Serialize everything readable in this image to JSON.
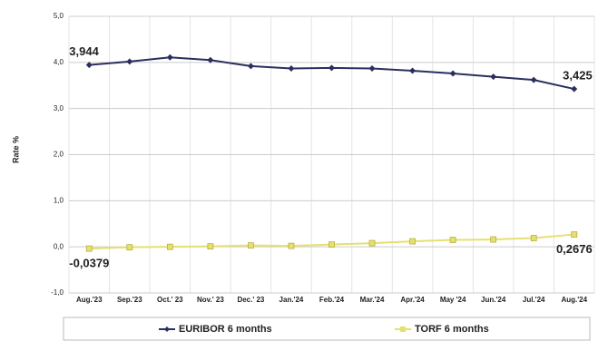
{
  "chart_data": {
    "type": "line",
    "y_label": "Rate %",
    "categories": [
      "Aug.'23",
      "Sep.'23",
      "Oct.' 23",
      "Nov.' 23",
      "Dec.' 23",
      "Jan.'24",
      "Feb.'24",
      "Mar.'24",
      "Apr.'24",
      "May '24",
      "Jun.'24",
      "Jul.'24",
      "Aug.'24"
    ],
    "series": [
      {
        "name": "EURIBOR 6 months",
        "color": "#2b2f5e",
        "marker": "diamond",
        "values": [
          3.944,
          4.02,
          4.11,
          4.05,
          3.92,
          3.87,
          3.88,
          3.87,
          3.82,
          3.76,
          3.69,
          3.62,
          3.425
        ],
        "value_labels": [
          "3,944",
          null,
          null,
          null,
          null,
          null,
          null,
          null,
          null,
          null,
          null,
          null,
          "3,425"
        ]
      },
      {
        "name": "TORF 6 months",
        "color": "#e6e070",
        "marker": "square",
        "values": [
          -0.0379,
          -0.01,
          0.0,
          0.01,
          0.03,
          0.02,
          0.05,
          0.08,
          0.12,
          0.15,
          0.16,
          0.19,
          0.2676
        ],
        "value_labels": [
          "-0,0379",
          null,
          null,
          null,
          null,
          null,
          null,
          null,
          null,
          null,
          null,
          null,
          "0,2676"
        ]
      }
    ],
    "ylim": [
      -1,
      5
    ],
    "yticks": [
      {
        "value": 5,
        "label": "5,0"
      },
      {
        "value": 4,
        "label": "4,0"
      },
      {
        "value": 3,
        "label": "3,0"
      },
      {
        "value": 2,
        "label": "2,0"
      },
      {
        "value": 1,
        "label": "1,0"
      },
      {
        "value": 0,
        "label": "0,0"
      },
      {
        "value": -1,
        "label": "-1,0"
      }
    ],
    "grid": true,
    "legend": "bottom"
  }
}
